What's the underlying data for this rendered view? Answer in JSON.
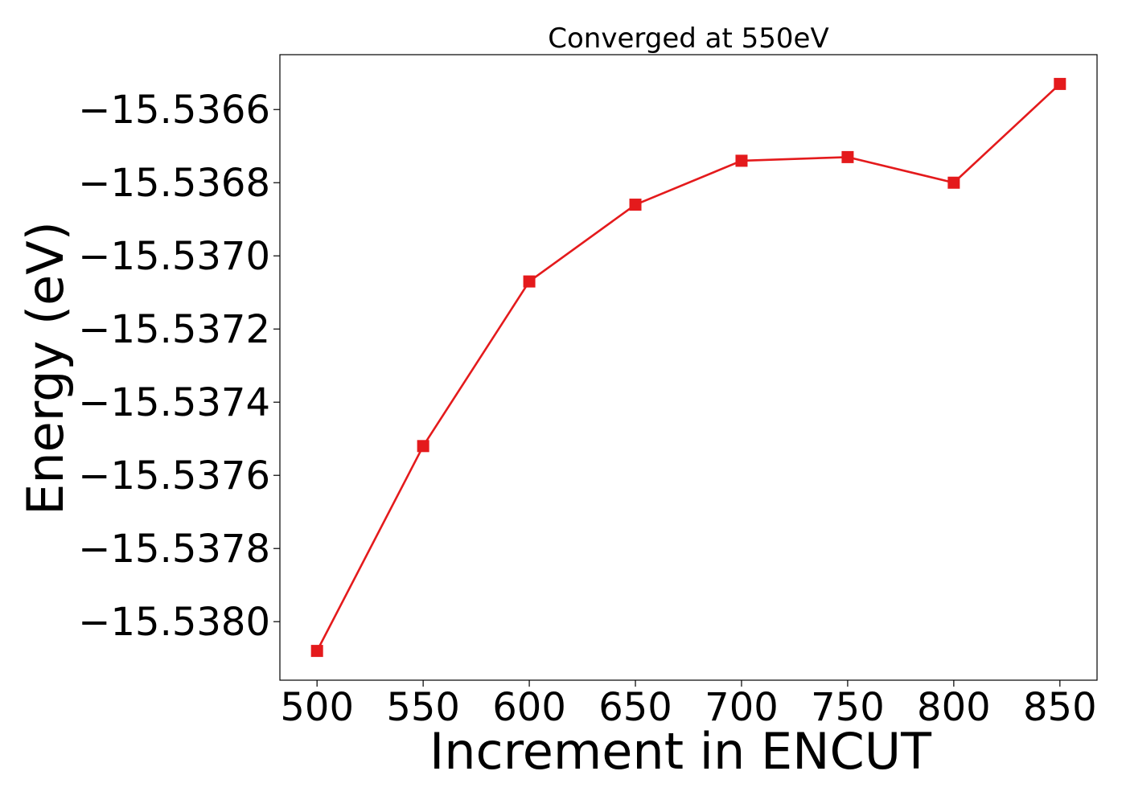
{
  "chart_data": {
    "type": "line",
    "title": "Converged at 550eV",
    "xlabel": "Increment in ENCUT",
    "ylabel": "Energy (eV)",
    "x": [
      500,
      550,
      600,
      650,
      700,
      750,
      800,
      850
    ],
    "series": [
      {
        "values": [
          -15.53808,
          -15.53752,
          -15.53707,
          -15.53686,
          -15.53674,
          -15.53673,
          -15.5368,
          -15.53653
        ],
        "color": "#e41a1c",
        "marker": "square"
      }
    ],
    "xticks": [
      500,
      550,
      600,
      650,
      700,
      750,
      800,
      850
    ],
    "xtick_labels": [
      "500",
      "550",
      "600",
      "650",
      "700",
      "750",
      "800",
      "850"
    ],
    "yticks": [
      -15.538,
      -15.5378,
      -15.5376,
      -15.5374,
      -15.5372,
      -15.537,
      -15.5368,
      -15.5366
    ],
    "ytick_labels": [
      "−15.5380",
      "−15.5378",
      "−15.5376",
      "−15.5374",
      "−15.5372",
      "−15.5370",
      "−15.5368",
      "−15.5366"
    ],
    "xlim": [
      482.5,
      867.5
    ],
    "ylim": [
      -15.53816,
      -15.53645
    ],
    "grid": false,
    "legend": "none"
  }
}
